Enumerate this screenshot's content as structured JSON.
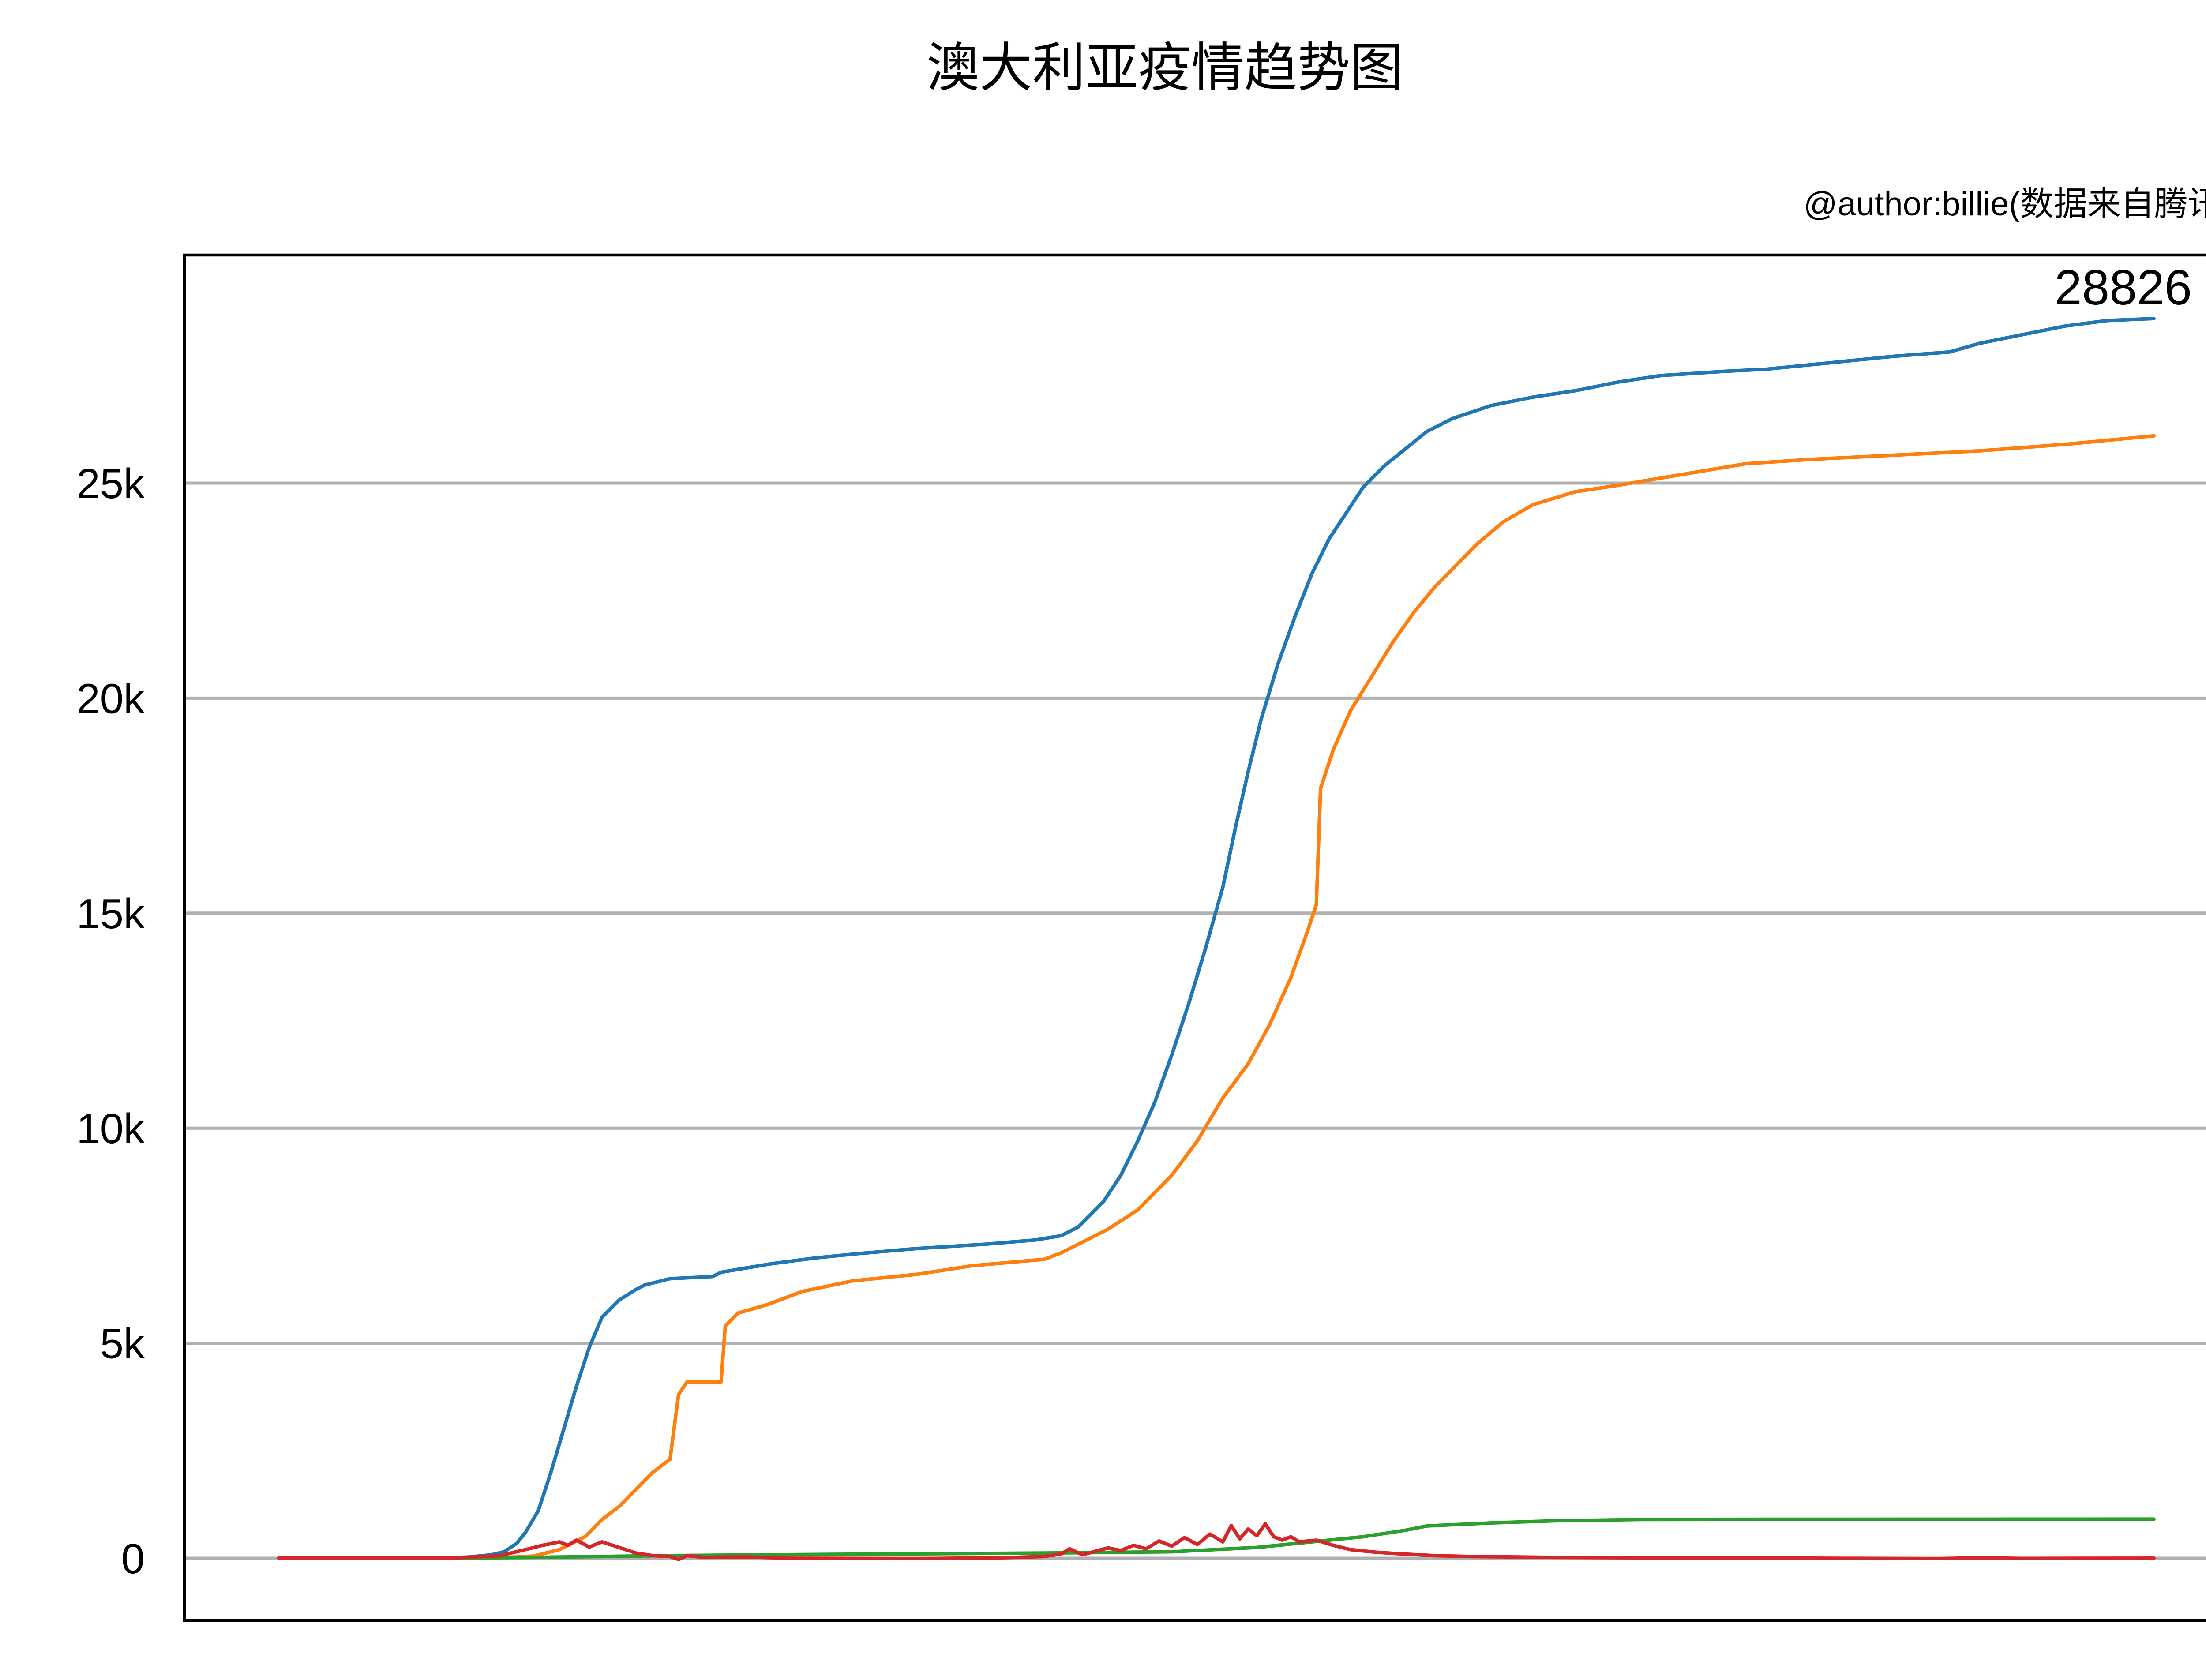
{
  "chart_data": {
    "type": "line",
    "title": "澳大利亚疫情趋势图",
    "subtitle": "@author:billie(数据来自腾讯)",
    "xlabel": "",
    "ylabel": "",
    "x_range": [
      0,
      441
    ],
    "ylim": [
      -1500,
      30000
    ],
    "y_ticks": [
      0,
      5000,
      10000,
      15000,
      20000,
      25000
    ],
    "y_tick_labels": [
      "0",
      "5k",
      "10k",
      "15k",
      "20k",
      "25k"
    ],
    "grid": "horizontal",
    "legend": "none",
    "end_label": "28826",
    "series": [
      {
        "color": "#1f77b4",
        "points": [
          [
            0,
            0
          ],
          [
            30,
            3
          ],
          [
            40,
            8
          ],
          [
            45,
            30
          ],
          [
            50,
            80
          ],
          [
            53,
            150
          ],
          [
            56,
            350
          ],
          [
            58,
            600
          ],
          [
            61,
            1100
          ],
          [
            64,
            2000
          ],
          [
            67,
            3000
          ],
          [
            70,
            4000
          ],
          [
            73,
            4900
          ],
          [
            76,
            5600
          ],
          [
            80,
            6000
          ],
          [
            84,
            6250
          ],
          [
            86,
            6350
          ],
          [
            90,
            6450
          ],
          [
            92,
            6500
          ],
          [
            102,
            6550
          ],
          [
            104,
            6650
          ],
          [
            110,
            6750
          ],
          [
            116,
            6850
          ],
          [
            126,
            6980
          ],
          [
            136,
            7080
          ],
          [
            150,
            7200
          ],
          [
            166,
            7300
          ],
          [
            178,
            7400
          ],
          [
            184,
            7500
          ],
          [
            188,
            7700
          ],
          [
            190,
            7900
          ],
          [
            194,
            8300
          ],
          [
            198,
            8900
          ],
          [
            202,
            9700
          ],
          [
            206,
            10600
          ],
          [
            210,
            11700
          ],
          [
            214,
            12900
          ],
          [
            218,
            14200
          ],
          [
            222,
            15600
          ],
          [
            225,
            17000
          ],
          [
            228,
            18300
          ],
          [
            231,
            19500
          ],
          [
            235,
            20800
          ],
          [
            239,
            21900
          ],
          [
            243,
            22900
          ],
          [
            247,
            23700
          ],
          [
            251,
            24300
          ],
          [
            255,
            24900
          ],
          [
            260,
            25400
          ],
          [
            265,
            25800
          ],
          [
            270,
            26200
          ],
          [
            276,
            26500
          ],
          [
            285,
            26800
          ],
          [
            295,
            27000
          ],
          [
            305,
            27150
          ],
          [
            315,
            27350
          ],
          [
            325,
            27500
          ],
          [
            340,
            27600
          ],
          [
            350,
            27650
          ],
          [
            365,
            27800
          ],
          [
            380,
            27950
          ],
          [
            393,
            28050
          ],
          [
            400,
            28250
          ],
          [
            410,
            28450
          ],
          [
            420,
            28650
          ],
          [
            430,
            28780
          ],
          [
            441,
            28826
          ]
        ]
      },
      {
        "color": "#ff7f0e",
        "points": [
          [
            0,
            0
          ],
          [
            50,
            0
          ],
          [
            60,
            50
          ],
          [
            66,
            200
          ],
          [
            72,
            500
          ],
          [
            76,
            900
          ],
          [
            80,
            1200
          ],
          [
            84,
            1600
          ],
          [
            88,
            2000
          ],
          [
            92,
            2300
          ],
          [
            94,
            3800
          ],
          [
            96,
            4100
          ],
          [
            104,
            4100
          ],
          [
            105,
            5400
          ],
          [
            108,
            5700
          ],
          [
            115,
            5900
          ],
          [
            123,
            6200
          ],
          [
            135,
            6450
          ],
          [
            150,
            6600
          ],
          [
            163,
            6800
          ],
          [
            180,
            6950
          ],
          [
            184,
            7100
          ],
          [
            190,
            7400
          ],
          [
            195,
            7650
          ],
          [
            202,
            8100
          ],
          [
            210,
            8900
          ],
          [
            216,
            9700
          ],
          [
            222,
            10700
          ],
          [
            228,
            11500
          ],
          [
            233,
            12400
          ],
          [
            238,
            13500
          ],
          [
            242,
            14600
          ],
          [
            244,
            15200
          ],
          [
            245,
            17900
          ],
          [
            248,
            18800
          ],
          [
            252,
            19700
          ],
          [
            257,
            20500
          ],
          [
            262,
            21300
          ],
          [
            267,
            22000
          ],
          [
            272,
            22600
          ],
          [
            277,
            23100
          ],
          [
            282,
            23600
          ],
          [
            288,
            24100
          ],
          [
            295,
            24500
          ],
          [
            305,
            24800
          ],
          [
            315,
            24950
          ],
          [
            330,
            25200
          ],
          [
            345,
            25450
          ],
          [
            360,
            25550
          ],
          [
            380,
            25650
          ],
          [
            400,
            25750
          ],
          [
            420,
            25900
          ],
          [
            441,
            26100
          ]
        ]
      },
      {
        "color": "#2ca02c",
        "points": [
          [
            0,
            0
          ],
          [
            40,
            0
          ],
          [
            60,
            20
          ],
          [
            90,
            60
          ],
          [
            130,
            90
          ],
          [
            180,
            120
          ],
          [
            210,
            150
          ],
          [
            230,
            250
          ],
          [
            245,
            400
          ],
          [
            255,
            500
          ],
          [
            265,
            650
          ],
          [
            270,
            750
          ],
          [
            285,
            820
          ],
          [
            300,
            870
          ],
          [
            320,
            900
          ],
          [
            350,
            905
          ],
          [
            400,
            907
          ],
          [
            441,
            909
          ]
        ]
      },
      {
        "color": "#d62728",
        "points": [
          [
            0,
            0
          ],
          [
            40,
            0
          ],
          [
            52,
            60
          ],
          [
            58,
            200
          ],
          [
            62,
            300
          ],
          [
            66,
            380
          ],
          [
            68,
            300
          ],
          [
            70,
            420
          ],
          [
            73,
            260
          ],
          [
            76,
            380
          ],
          [
            80,
            250
          ],
          [
            84,
            120
          ],
          [
            88,
            60
          ],
          [
            92,
            40
          ],
          [
            94,
            -30
          ],
          [
            96,
            60
          ],
          [
            100,
            20
          ],
          [
            110,
            30
          ],
          [
            120,
            0
          ],
          [
            150,
            -10
          ],
          [
            170,
            10
          ],
          [
            180,
            40
          ],
          [
            184,
            100
          ],
          [
            186,
            220
          ],
          [
            189,
            80
          ],
          [
            192,
            160
          ],
          [
            195,
            240
          ],
          [
            198,
            180
          ],
          [
            201,
            300
          ],
          [
            204,
            220
          ],
          [
            207,
            400
          ],
          [
            210,
            280
          ],
          [
            213,
            480
          ],
          [
            216,
            320
          ],
          [
            219,
            560
          ],
          [
            222,
            380
          ],
          [
            224,
            760
          ],
          [
            226,
            450
          ],
          [
            228,
            680
          ],
          [
            230,
            520
          ],
          [
            232,
            800
          ],
          [
            234,
            500
          ],
          [
            236,
            420
          ],
          [
            238,
            500
          ],
          [
            240,
            380
          ],
          [
            244,
            420
          ],
          [
            248,
            300
          ],
          [
            252,
            200
          ],
          [
            258,
            140
          ],
          [
            264,
            100
          ],
          [
            272,
            60
          ],
          [
            280,
            40
          ],
          [
            300,
            20
          ],
          [
            320,
            10
          ],
          [
            360,
            0
          ],
          [
            390,
            -10
          ],
          [
            400,
            10
          ],
          [
            410,
            -5
          ],
          [
            441,
            0
          ]
        ]
      }
    ]
  }
}
